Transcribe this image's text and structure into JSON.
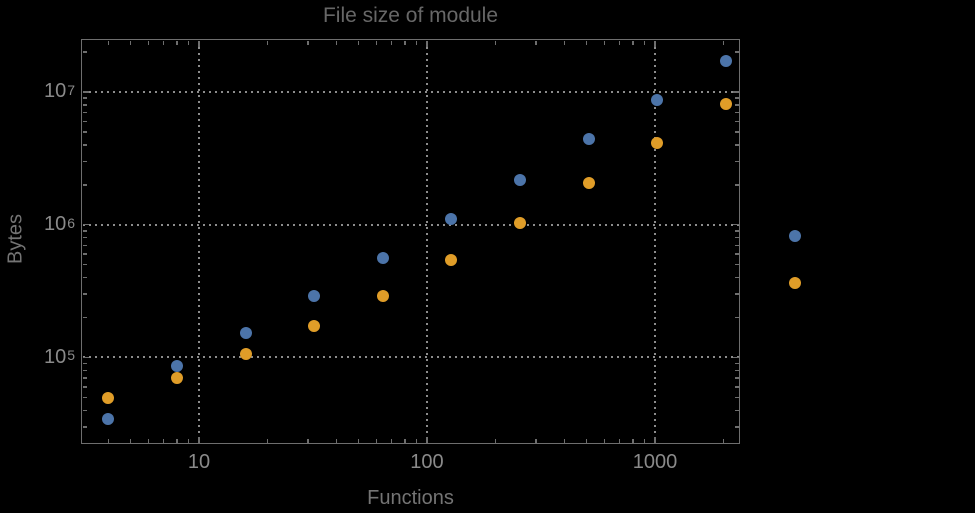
{
  "colors": {
    "background": "#000000",
    "frame": "#6E6E6E",
    "gridline": "#8C8C8C",
    "title_text": "#676767",
    "axis_label_text": "#747474",
    "tick_label_text": "#8A8A8A",
    "series_blue": "#4C74A9",
    "series_orange": "#E09D28"
  },
  "chart_data": {
    "type": "scatter",
    "title": "File size of module",
    "xlabel": "Functions",
    "ylabel": "Bytes",
    "x_scale": "log10",
    "y_scale": "log10",
    "xlim_log10": [
      0.4825,
      3.3728
    ],
    "ylim_log10": [
      4.3484,
      7.3992
    ],
    "grid": "dotted lines at decade majors only",
    "legend": "none",
    "x_major_ticks": [
      {
        "value": 10,
        "label": "10"
      },
      {
        "value": 100,
        "label": "100"
      },
      {
        "value": 1000,
        "label": "1000"
      }
    ],
    "x_minor_ticks": [
      4,
      5,
      6,
      7,
      8,
      9,
      20,
      30,
      40,
      50,
      60,
      70,
      80,
      90,
      200,
      300,
      400,
      500,
      600,
      700,
      800,
      900,
      2000
    ],
    "y_major_ticks": [
      {
        "value": 100000,
        "base": "10",
        "exp": "5"
      },
      {
        "value": 1000000,
        "base": "10",
        "exp": "6"
      },
      {
        "value": 10000000,
        "base": "10",
        "exp": "7"
      }
    ],
    "y_minor_ticks": [
      30000,
      40000,
      50000,
      60000,
      70000,
      80000,
      90000,
      200000,
      300000,
      400000,
      500000,
      600000,
      700000,
      800000,
      900000,
      2000000,
      3000000,
      4000000,
      5000000,
      6000000,
      7000000,
      8000000,
      9000000,
      20000000
    ],
    "gridlines": {
      "x": [
        10,
        100,
        1000
      ],
      "y": [
        100000,
        1000000,
        10000000
      ]
    },
    "x": [
      4,
      8,
      16,
      32,
      64,
      128,
      256,
      512,
      1024,
      2048,
      4096
    ],
    "series": [
      {
        "name": "blue",
        "color": "#4C74A9",
        "values": [
          34600,
          86300,
          152000,
          290000,
          562000,
          1100000,
          2170000,
          4430000,
          8630000,
          17100000,
          823000
        ]
      },
      {
        "name": "orange",
        "color": "#E09D28",
        "values": [
          49600,
          70500,
          107000,
          173000,
          290000,
          542000,
          1030000,
          2060000,
          4130000,
          8120000,
          364000
        ]
      }
    ]
  }
}
